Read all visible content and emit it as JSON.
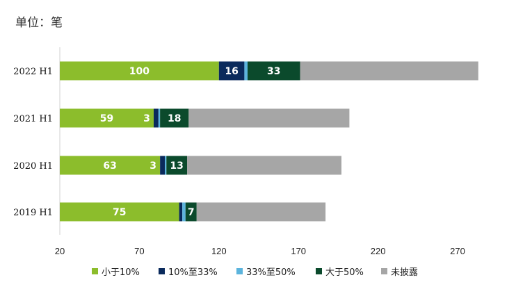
{
  "unit_label": "单位：笔",
  "chart_data": {
    "type": "bar",
    "orientation": "horizontal",
    "stacked": true,
    "categories": [
      "2022 H1",
      "2021 H1",
      "2020 H1",
      "2019 H1"
    ],
    "series": [
      {
        "name": "小于10%",
        "color": "#8CBD2C",
        "values": [
          100,
          59,
          63,
          75
        ],
        "labels": [
          "100",
          "59",
          "63",
          "75"
        ]
      },
      {
        "name": "10%至33%",
        "color": "#0A2A5C",
        "values": [
          16,
          3,
          3,
          2
        ],
        "labels": [
          "16",
          "3",
          "3",
          ""
        ]
      },
      {
        "name": "33%至50%",
        "color": "#5CB4DD",
        "values": [
          2,
          1,
          1,
          2
        ],
        "labels": [
          "",
          "",
          "",
          ""
        ]
      },
      {
        "name": "大于50%",
        "color": "#0B4A2C",
        "values": [
          33,
          18,
          13,
          7
        ],
        "labels": [
          "33",
          "18",
          "13",
          "7"
        ]
      },
      {
        "name": "未披露",
        "color": "#A6A6A6",
        "values": [
          112,
          101,
          97,
          81
        ],
        "labels": [
          "",
          "",
          "",
          ""
        ]
      }
    ],
    "xlim": [
      20,
      270
    ],
    "xticks": [
      20,
      70,
      120,
      170,
      220,
      270
    ],
    "legend_position": "bottom",
    "grid": false
  }
}
